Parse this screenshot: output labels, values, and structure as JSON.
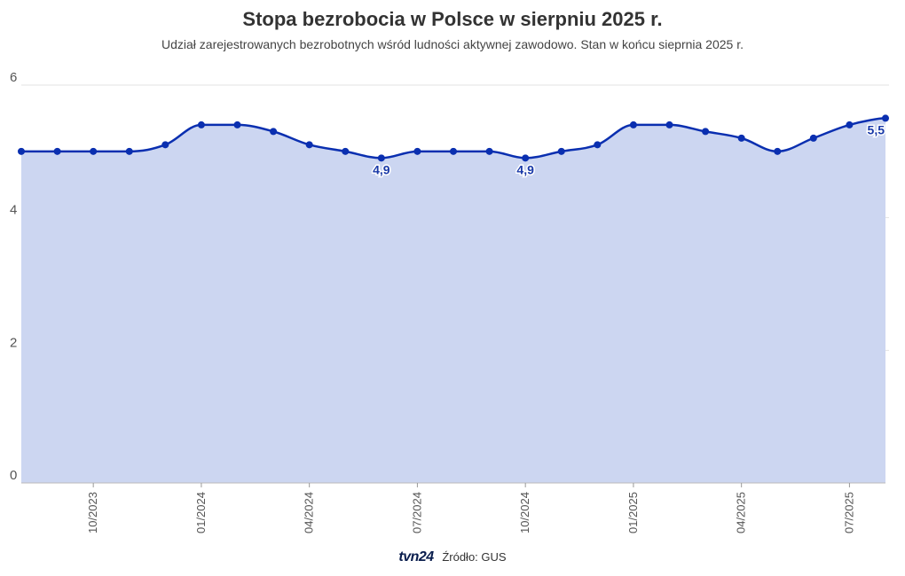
{
  "chart_data": {
    "type": "area",
    "title": "Stopa bezrobocia w Polsce w sierpniu 2025 r.",
    "subtitle": "Udział zarejestrowanych bezrobotnych wśród ludności aktywnej zawodowo. Stan w końcu sieprnia 2025 r.",
    "x": [
      "08/2023",
      "09/2023",
      "10/2023",
      "11/2023",
      "12/2023",
      "01/2024",
      "02/2024",
      "03/2024",
      "04/2024",
      "05/2024",
      "06/2024",
      "07/2024",
      "08/2024",
      "09/2024",
      "10/2024",
      "11/2024",
      "12/2024",
      "01/2025",
      "02/2025",
      "03/2025",
      "04/2025",
      "05/2025",
      "06/2025",
      "07/2025",
      "08/2025"
    ],
    "series": [
      {
        "values": [
          5.0,
          5.0,
          5.0,
          5.0,
          5.1,
          5.4,
          5.4,
          5.3,
          5.1,
          5.0,
          4.9,
          5.0,
          5.0,
          5.0,
          4.9,
          5.0,
          5.1,
          5.4,
          5.4,
          5.3,
          5.2,
          5.0,
          5.2,
          5.4,
          5.5
        ]
      }
    ],
    "x_tick_labels": [
      "10/2023",
      "01/2024",
      "04/2024",
      "07/2024",
      "10/2024",
      "01/2025",
      "04/2025",
      "07/2025"
    ],
    "y_ticks": [
      0,
      2,
      4,
      6
    ],
    "ylim": [
      0,
      6
    ],
    "annotations": [
      {
        "x": "06/2024",
        "label": "4,9"
      },
      {
        "x": "10/2024",
        "label": "4,9"
      },
      {
        "x": "08/2025",
        "label": "5,5"
      }
    ],
    "grid": true,
    "colors": {
      "line": "#0a2fb0",
      "fill": "#ccd6f1",
      "grid": "#e3e3e3"
    }
  },
  "footer": {
    "logo": "tvn24",
    "source": "Źródło: GUS"
  }
}
